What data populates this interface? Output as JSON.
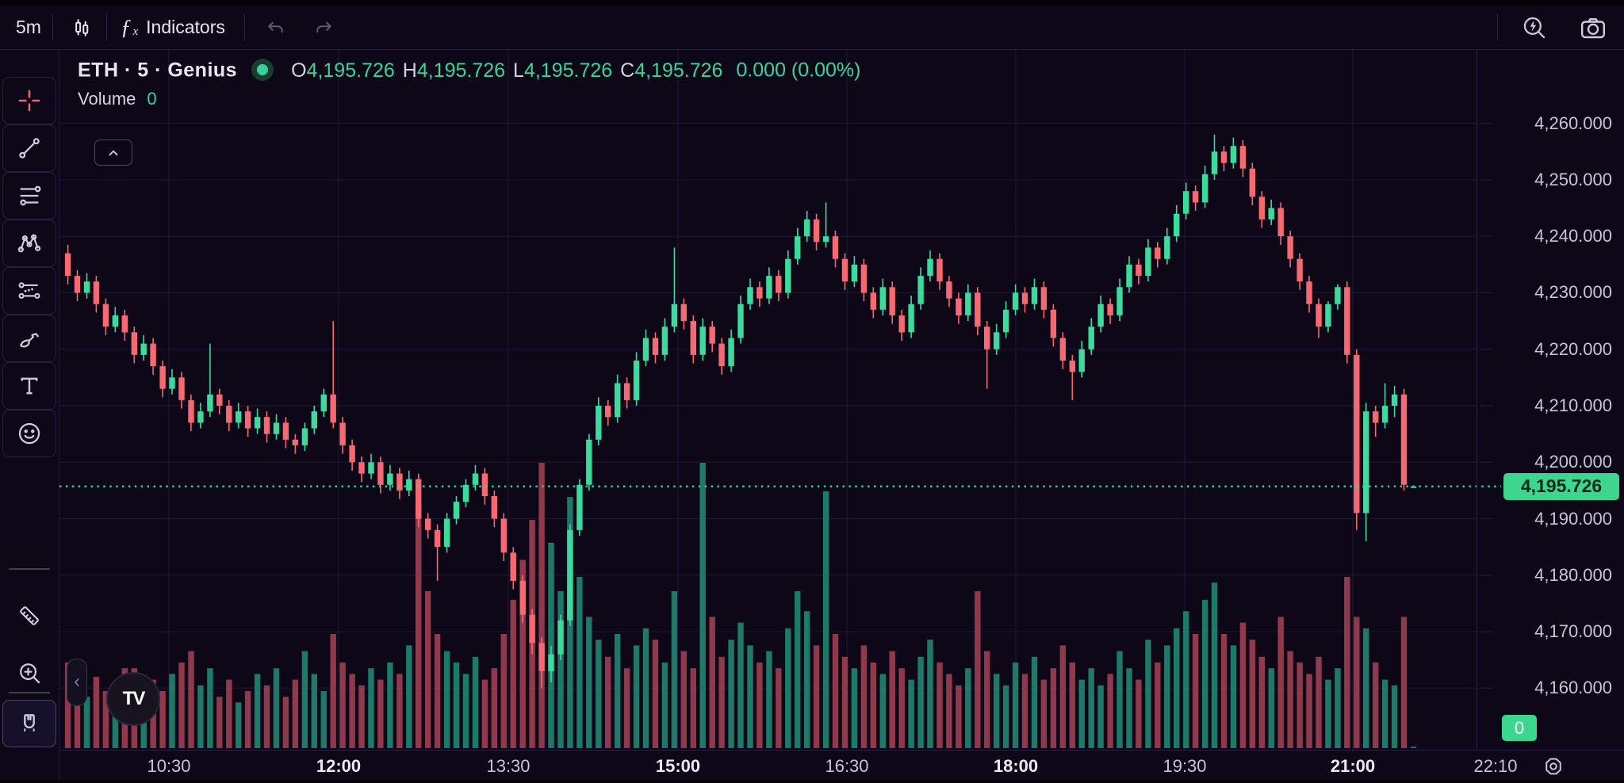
{
  "colors": {
    "background": "#0d0717",
    "grid": "#1e1838",
    "up": "#3bdb9e",
    "down": "#f56a72",
    "volume_up": "#1e7a68",
    "volume_down": "#8f3a4c",
    "accent_green": "#3cd68f",
    "last_price_line": "#3cd699",
    "badge_dark_text": "#06281c",
    "axis_text": "#c9c3da"
  },
  "topbar": {
    "timeframe": "5m",
    "indicators_label": "Indicators",
    "fx_glyph": "ƒ",
    "fx_sub": "x",
    "icons": [
      "candles-style-icon",
      "undo-icon",
      "redo-icon",
      "flash-search-icon",
      "camera-icon"
    ]
  },
  "left_toolbar": {
    "groups": [
      {
        "tools": [
          {
            "id": "crosshair",
            "selected": false
          },
          {
            "id": "trend-line",
            "selected": false
          },
          {
            "id": "fib-retracement",
            "selected": false
          },
          {
            "id": "xabcd-pattern",
            "selected": false
          },
          {
            "id": "long-position",
            "selected": false
          },
          {
            "id": "brush",
            "selected": false
          },
          {
            "id": "text",
            "selected": false
          },
          {
            "id": "emoji",
            "selected": false
          }
        ]
      },
      {
        "tools": [
          {
            "id": "ruler",
            "selected": false
          },
          {
            "id": "zoom-in",
            "selected": false
          }
        ]
      },
      {
        "tools": [
          {
            "id": "magnet",
            "selected": true
          }
        ]
      },
      {
        "tools": [
          {
            "id": "pencil-partial",
            "selected": false
          }
        ]
      }
    ]
  },
  "legend": {
    "symbol": "ETH · 5 · Genius",
    "ohlc": [
      {
        "k": "O",
        "v": "4,195.726"
      },
      {
        "k": "H",
        "v": "4,195.726"
      },
      {
        "k": "L",
        "v": "4,195.726"
      },
      {
        "k": "C",
        "v": "4,195.726"
      }
    ],
    "change": "0.000 (0.00%)",
    "volume_label": "Volume",
    "volume_value": "0"
  },
  "price_axis_ticks": [
    {
      "price": 4260,
      "label": "4,260.000"
    },
    {
      "price": 4250,
      "label": "4,250.000"
    },
    {
      "price": 4240,
      "label": "4,240.000"
    },
    {
      "price": 4230,
      "label": "4,230.000"
    },
    {
      "price": 4220,
      "label": "4,220.000"
    },
    {
      "price": 4210,
      "label": "4,210.000"
    },
    {
      "price": 4200,
      "label": "4,200.000"
    },
    {
      "price": 4190,
      "label": "4,190.000"
    },
    {
      "price": 4180,
      "label": "4,180.000"
    },
    {
      "price": 4170,
      "label": "4,170.000"
    },
    {
      "price": 4160,
      "label": "4,160.000"
    }
  ],
  "time_axis_ticks": [
    {
      "label": "10:30",
      "bold": false
    },
    {
      "label": "12:00",
      "bold": true
    },
    {
      "label": "13:30",
      "bold": false
    },
    {
      "label": "15:00",
      "bold": true
    },
    {
      "label": "16:30",
      "bold": false
    },
    {
      "label": "18:00",
      "bold": true
    },
    {
      "label": "19:30",
      "bold": false
    },
    {
      "label": "21:00",
      "bold": true
    },
    {
      "label": "22:10",
      "bold": false
    }
  ],
  "badges": {
    "last_price": "4,195.726",
    "volume_zero": "0"
  },
  "chart_data": {
    "type": "candlestick_with_volume",
    "title": "ETH · 5 · Genius",
    "interval_minutes": 5,
    "first_bar_time": "09:35",
    "last_price": 4195.726,
    "ylim": [
      4149.1,
      4273.0
    ],
    "volume_lim": [
      0,
      100
    ],
    "legend_position": "top-left",
    "grid": true,
    "candles_ohlcv": [
      [
        4237,
        4238.5,
        4231.5,
        4233,
        30
      ],
      [
        4233,
        4234,
        4228.5,
        4230,
        22
      ],
      [
        4230,
        4233.5,
        4229,
        4232,
        18
      ],
      [
        4232,
        4233,
        4226.5,
        4228,
        25
      ],
      [
        4228,
        4229,
        4222.5,
        4224,
        20
      ],
      [
        4224,
        4227.5,
        4223,
        4226,
        16
      ],
      [
        4226,
        4227,
        4221.5,
        4223,
        28
      ],
      [
        4223,
        4224,
        4217.5,
        4219,
        28
      ],
      [
        4219,
        4222.5,
        4218,
        4221,
        18
      ],
      [
        4221,
        4222,
        4215.5,
        4217,
        24
      ],
      [
        4217,
        4218,
        4211.5,
        4213,
        20
      ],
      [
        4213,
        4216.5,
        4212,
        4215,
        26
      ],
      [
        4215,
        4216,
        4209.5,
        4211,
        30
      ],
      [
        4211,
        4212,
        4205.5,
        4207,
        34
      ],
      [
        4207,
        4210.5,
        4206,
        4209,
        22
      ],
      [
        4209,
        4221,
        4208,
        4212,
        28
      ],
      [
        4212,
        4213,
        4208.5,
        4210,
        18
      ],
      [
        4210,
        4211,
        4205.5,
        4207,
        24
      ],
      [
        4207,
        4210.5,
        4206,
        4209,
        16
      ],
      [
        4209,
        4210,
        4204.5,
        4206,
        20
      ],
      [
        4206,
        4209.5,
        4205,
        4208,
        26
      ],
      [
        4208,
        4209,
        4203.5,
        4205,
        22
      ],
      [
        4205,
        4208.5,
        4204,
        4207,
        28
      ],
      [
        4207,
        4208,
        4202.5,
        4204,
        18
      ],
      [
        4204,
        4205,
        4201.5,
        4203,
        24
      ],
      [
        4203,
        4207,
        4202,
        4206,
        34
      ],
      [
        4206,
        4210,
        4205,
        4209,
        26
      ],
      [
        4209,
        4213,
        4208,
        4212,
        20
      ],
      [
        4212,
        4225,
        4206,
        4207,
        40
      ],
      [
        4207,
        4208,
        4201.5,
        4203,
        30
      ],
      [
        4203,
        4204,
        4198.5,
        4200,
        26
      ],
      [
        4200,
        4201,
        4196.5,
        4198,
        22
      ],
      [
        4198,
        4201.5,
        4197,
        4200,
        28
      ],
      [
        4200,
        4201,
        4194.5,
        4196,
        24
      ],
      [
        4196,
        4199.5,
        4195,
        4198,
        30
      ],
      [
        4198,
        4199,
        4193.5,
        4195,
        26
      ],
      [
        4195,
        4198.5,
        4194,
        4197,
        36
      ],
      [
        4197,
        4198,
        4188.5,
        4190,
        85
      ],
      [
        4190,
        4191,
        4186.5,
        4188,
        55
      ],
      [
        4188,
        4189,
        4179,
        4185,
        40
      ],
      [
        4185,
        4191,
        4184,
        4190,
        34
      ],
      [
        4190,
        4194,
        4189,
        4193,
        30
      ],
      [
        4193,
        4197,
        4192,
        4196,
        26
      ],
      [
        4196,
        4199.5,
        4195,
        4198,
        32
      ],
      [
        4198,
        4199,
        4192.5,
        4194,
        24
      ],
      [
        4194,
        4195,
        4188.5,
        4190,
        28
      ],
      [
        4190,
        4191,
        4182.5,
        4184,
        40
      ],
      [
        4184,
        4185,
        4177.5,
        4179,
        52
      ],
      [
        4179,
        4180,
        4171.5,
        4173,
        66
      ],
      [
        4173,
        4174,
        4166,
        4168,
        80
      ],
      [
        4168,
        4169,
        4160,
        4163,
        100
      ],
      [
        4163,
        4167.5,
        4161,
        4166,
        72
      ],
      [
        4166,
        4173,
        4165,
        4172,
        55
      ],
      [
        4172,
        4189,
        4171,
        4188,
        88
      ],
      [
        4188,
        4197,
        4187,
        4196,
        60
      ],
      [
        4196,
        4205,
        4195,
        4204,
        46
      ],
      [
        4204,
        4211.5,
        4203,
        4210,
        38
      ],
      [
        4210,
        4211,
        4206.5,
        4208,
        32
      ],
      [
        4208,
        4215.5,
        4207,
        4214,
        40
      ],
      [
        4214,
        4215,
        4209.5,
        4211,
        28
      ],
      [
        4211,
        4219.5,
        4210,
        4218,
        36
      ],
      [
        4218,
        4223.5,
        4217,
        4222,
        42
      ],
      [
        4222,
        4223,
        4217.5,
        4219,
        38
      ],
      [
        4219,
        4225.5,
        4218,
        4224,
        30
      ],
      [
        4224,
        4238,
        4223,
        4228,
        55
      ],
      [
        4228,
        4229,
        4223.5,
        4225,
        34
      ],
      [
        4225,
        4226,
        4217.5,
        4219,
        28
      ],
      [
        4219,
        4225.5,
        4218,
        4224,
        100
      ],
      [
        4224,
        4225,
        4219.5,
        4221,
        46
      ],
      [
        4221,
        4222,
        4215.5,
        4217,
        32
      ],
      [
        4217,
        4223.5,
        4216,
        4222,
        38
      ],
      [
        4222,
        4229.5,
        4221,
        4228,
        44
      ],
      [
        4228,
        4232.5,
        4227,
        4231,
        36
      ],
      [
        4231,
        4232,
        4227.5,
        4229,
        30
      ],
      [
        4229,
        4234.5,
        4228,
        4233,
        34
      ],
      [
        4233,
        4234,
        4228.5,
        4230,
        28
      ],
      [
        4230,
        4237.5,
        4229,
        4236,
        42
      ],
      [
        4236,
        4241.5,
        4235,
        4240,
        55
      ],
      [
        4240,
        4244.5,
        4239,
        4243,
        48
      ],
      [
        4243,
        4244,
        4237.5,
        4239,
        36
      ],
      [
        4239,
        4246,
        4238,
        4240,
        90
      ],
      [
        4240,
        4241,
        4234.5,
        4236,
        40
      ],
      [
        4236,
        4237,
        4230.5,
        4232,
        32
      ],
      [
        4232,
        4236.5,
        4231,
        4235,
        28
      ],
      [
        4235,
        4236,
        4228.5,
        4230,
        36
      ],
      [
        4230,
        4231,
        4225.5,
        4227,
        30
      ],
      [
        4227,
        4232.5,
        4226,
        4231,
        26
      ],
      [
        4231,
        4232,
        4224.5,
        4226,
        34
      ],
      [
        4226,
        4227,
        4221.5,
        4223,
        28
      ],
      [
        4223,
        4229.5,
        4222,
        4228,
        24
      ],
      [
        4228,
        4234.5,
        4227,
        4233,
        32
      ],
      [
        4233,
        4237.5,
        4232,
        4236,
        38
      ],
      [
        4236,
        4237,
        4230.5,
        4232,
        30
      ],
      [
        4232,
        4233,
        4227.5,
        4229,
        26
      ],
      [
        4229,
        4230,
        4224.5,
        4226,
        22
      ],
      [
        4226,
        4231.5,
        4225,
        4230,
        28
      ],
      [
        4230,
        4231,
        4222.5,
        4224,
        55
      ],
      [
        4224,
        4225,
        4213,
        4220,
        34
      ],
      [
        4220,
        4224.5,
        4219,
        4223,
        26
      ],
      [
        4223,
        4228.5,
        4222,
        4227,
        22
      ],
      [
        4227,
        4231.5,
        4226,
        4230,
        30
      ],
      [
        4230,
        4231,
        4226.5,
        4228,
        26
      ],
      [
        4228,
        4232.5,
        4227,
        4231,
        32
      ],
      [
        4231,
        4232,
        4225.5,
        4227,
        24
      ],
      [
        4227,
        4228,
        4220.5,
        4222,
        28
      ],
      [
        4222,
        4223,
        4216.5,
        4218,
        36
      ],
      [
        4218,
        4219,
        4211,
        4216,
        30
      ],
      [
        4216,
        4221.5,
        4215,
        4220,
        24
      ],
      [
        4220,
        4225.5,
        4219,
        4224,
        28
      ],
      [
        4224,
        4229.5,
        4223,
        4228,
        22
      ],
      [
        4228,
        4229,
        4224.5,
        4226,
        26
      ],
      [
        4226,
        4232.5,
        4225,
        4231,
        34
      ],
      [
        4231,
        4236.5,
        4230,
        4235,
        28
      ],
      [
        4235,
        4236,
        4231.5,
        4233,
        24
      ],
      [
        4233,
        4239.5,
        4232,
        4238,
        38
      ],
      [
        4238,
        4239,
        4234.5,
        4236,
        30
      ],
      [
        4236,
        4241.5,
        4235,
        4240,
        36
      ],
      [
        4240,
        4245.5,
        4239,
        4244,
        42
      ],
      [
        4244,
        4249.5,
        4243,
        4248,
        48
      ],
      [
        4248,
        4249,
        4244.5,
        4246,
        40
      ],
      [
        4246,
        4252.5,
        4245,
        4251,
        52
      ],
      [
        4251,
        4258,
        4250,
        4255,
        58
      ],
      [
        4255,
        4256,
        4251.5,
        4253,
        40
      ],
      [
        4253,
        4257.5,
        4252,
        4256,
        36
      ],
      [
        4256,
        4257,
        4250.5,
        4252,
        44
      ],
      [
        4252,
        4253,
        4245.5,
        4247,
        38
      ],
      [
        4247,
        4248,
        4241.5,
        4243,
        32
      ],
      [
        4243,
        4246.5,
        4242,
        4245,
        28
      ],
      [
        4245,
        4246,
        4238.5,
        4240,
        46
      ],
      [
        4240,
        4241,
        4234.5,
        4236,
        34
      ],
      [
        4236,
        4237,
        4230.5,
        4232,
        30
      ],
      [
        4232,
        4233,
        4226.5,
        4228,
        26
      ],
      [
        4228,
        4229,
        4222,
        4224,
        32
      ],
      [
        4224,
        4228.5,
        4223,
        4228,
        24
      ],
      [
        4228,
        4231.5,
        4227,
        4231,
        28
      ],
      [
        4231,
        4232,
        4217.5,
        4219,
        60
      ],
      [
        4219,
        4220,
        4188,
        4191,
        46
      ],
      [
        4191,
        4210.5,
        4186,
        4209,
        42
      ],
      [
        4209,
        4210,
        4204.5,
        4207,
        30
      ],
      [
        4207,
        4214,
        4206,
        4210,
        24
      ],
      [
        4210,
        4213.5,
        4208,
        4212,
        22
      ],
      [
        4212,
        4213,
        4195,
        4196,
        46
      ],
      [
        4195.726,
        4195.726,
        4195.726,
        4195.726,
        0.5
      ]
    ]
  }
}
